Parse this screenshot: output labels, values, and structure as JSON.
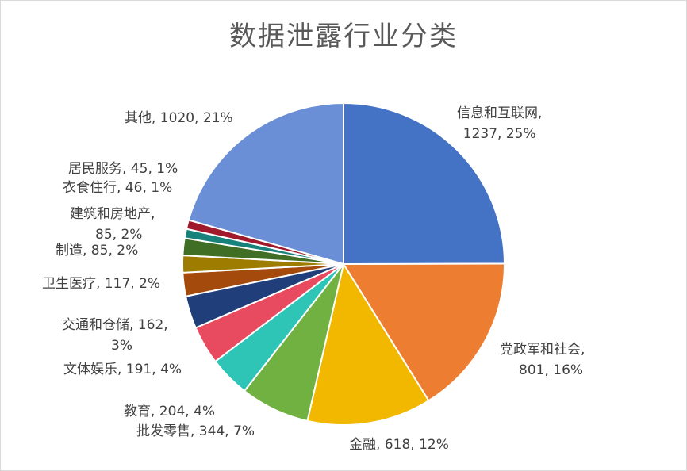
{
  "chart_data": {
    "type": "pie",
    "title": "数据泄露行业分类",
    "slices": [
      {
        "name": "信息和互联网",
        "value": 1237,
        "percent": "25%",
        "color": "#4472c4",
        "label": [
          "信息和互联网,",
          "1237, 25%"
        ]
      },
      {
        "name": "党政军和社会",
        "value": 801,
        "percent": "16%",
        "color": "#ed7d31",
        "label": [
          "党政军和社会,",
          "801, 16%"
        ]
      },
      {
        "name": "金融",
        "value": 618,
        "percent": "12%",
        "color": "#f2b800",
        "label": [
          "金融, 618, 12%"
        ]
      },
      {
        "name": "批发零售",
        "value": 344,
        "percent": "7%",
        "color": "#70b142",
        "label": [
          "批发零售, 344, 7%"
        ]
      },
      {
        "name": "教育",
        "value": 204,
        "percent": "4%",
        "color": "#2ec4b6",
        "label": [
          "教育, 204, 4%"
        ]
      },
      {
        "name": "文体娱乐",
        "value": 191,
        "percent": "4%",
        "color": "#e84a5f",
        "label": [
          "文体娱乐, 191, 4%"
        ]
      },
      {
        "name": "交通和仓储",
        "value": 162,
        "percent": "3%",
        "color": "#203f7a",
        "label": [
          "交通和仓储, 162,",
          "3%"
        ]
      },
      {
        "name": "卫生医疗",
        "value": 117,
        "percent": "2%",
        "color": "#a34a0c",
        "label": [
          "卫生医疗, 117, 2%"
        ]
      },
      {
        "name": "制造",
        "value": 85,
        "percent": "2%",
        "color": "#9e7c00",
        "label": [
          "制造, 85, 2%"
        ]
      },
      {
        "name": "建筑和房地产",
        "value": 85,
        "percent": "2%",
        "color": "#3f6e24",
        "label": [
          "建筑和房地产,",
          "85, 2%"
        ]
      },
      {
        "name": "衣食住行",
        "value": 46,
        "percent": "1%",
        "color": "#17827b",
        "label": [
          "衣食住行, 46, 1%"
        ]
      },
      {
        "name": "居民服务",
        "value": 45,
        "percent": "1%",
        "color": "#a01a2c",
        "label": [
          "居民服务, 45, 1%"
        ]
      },
      {
        "name": "其他",
        "value": 1020,
        "percent": "21%",
        "color": "#6a8fd6",
        "label": [
          "其他, 1020, 21%"
        ]
      }
    ]
  }
}
